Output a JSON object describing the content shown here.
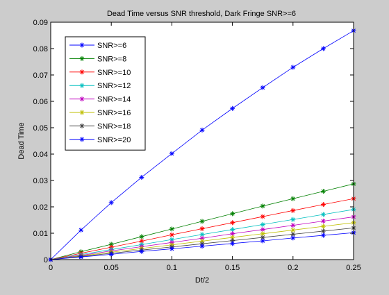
{
  "chart_data": {
    "type": "line",
    "title": "Dead Time versus SNR threshold, Dark Fringe SNR>=6",
    "xlabel": "Dt/2",
    "ylabel": "Dead Time",
    "xlim": [
      0,
      0.25
    ],
    "ylim": [
      0,
      0.09
    ],
    "xticks": [
      0,
      0.05,
      0.1,
      0.15,
      0.2,
      0.25
    ],
    "xtick_labels": [
      "0",
      "0.05",
      "0.1",
      "0.15",
      "0.2",
      "0.25"
    ],
    "yticks": [
      0,
      0.01,
      0.02,
      0.03,
      0.04,
      0.05,
      0.06,
      0.07,
      0.08,
      0.09
    ],
    "ytick_labels": [
      "0",
      "0.01",
      "0.02",
      "0.03",
      "0.04",
      "0.05",
      "0.06",
      "0.07",
      "0.08",
      "0.09"
    ],
    "grid": false,
    "legend_position": "top-left",
    "marker": "asterisk",
    "x": [
      0,
      0.025,
      0.05,
      0.075,
      0.1,
      0.125,
      0.15,
      0.175,
      0.2,
      0.225,
      0.25
    ],
    "series": [
      {
        "name": "SNR>=6",
        "color": "#0000ff",
        "values": [
          0,
          0.0112,
          0.0216,
          0.0312,
          0.0402,
          0.0491,
          0.0573,
          0.0652,
          0.0729,
          0.08,
          0.0868
        ]
      },
      {
        "name": "SNR>=8",
        "color": "#008000",
        "values": [
          0,
          0.003,
          0.0058,
          0.0087,
          0.0116,
          0.0145,
          0.0174,
          0.0203,
          0.0231,
          0.0259,
          0.0287
        ]
      },
      {
        "name": "SNR>=10",
        "color": "#ff0000",
        "values": [
          0,
          0.0024,
          0.0047,
          0.007,
          0.0094,
          0.0117,
          0.014,
          0.0163,
          0.0186,
          0.0209,
          0.0231
        ]
      },
      {
        "name": "SNR>=12",
        "color": "#00bfbf",
        "values": [
          0,
          0.0019,
          0.0038,
          0.0057,
          0.0076,
          0.0095,
          0.0114,
          0.0133,
          0.0152,
          0.0171,
          0.019
        ]
      },
      {
        "name": "SNR>=14",
        "color": "#bf00bf",
        "values": [
          0,
          0.0016,
          0.0033,
          0.0049,
          0.0065,
          0.0081,
          0.0098,
          0.0114,
          0.013,
          0.0146,
          0.0162
        ]
      },
      {
        "name": "SNR>=16",
        "color": "#bfbf00",
        "values": [
          0,
          0.0014,
          0.0028,
          0.0042,
          0.0056,
          0.007,
          0.0084,
          0.0098,
          0.0112,
          0.0126,
          0.014
        ]
      },
      {
        "name": "SNR>=18",
        "color": "#404040",
        "values": [
          0,
          0.0012,
          0.0024,
          0.0036,
          0.0048,
          0.006,
          0.0072,
          0.0084,
          0.0096,
          0.0108,
          0.012
        ]
      },
      {
        "name": "SNR>=20",
        "color": "#0000ff",
        "values": [
          0,
          0.001,
          0.002,
          0.0031,
          0.0041,
          0.0051,
          0.0061,
          0.0071,
          0.0082,
          0.0092,
          0.0102
        ]
      }
    ]
  }
}
